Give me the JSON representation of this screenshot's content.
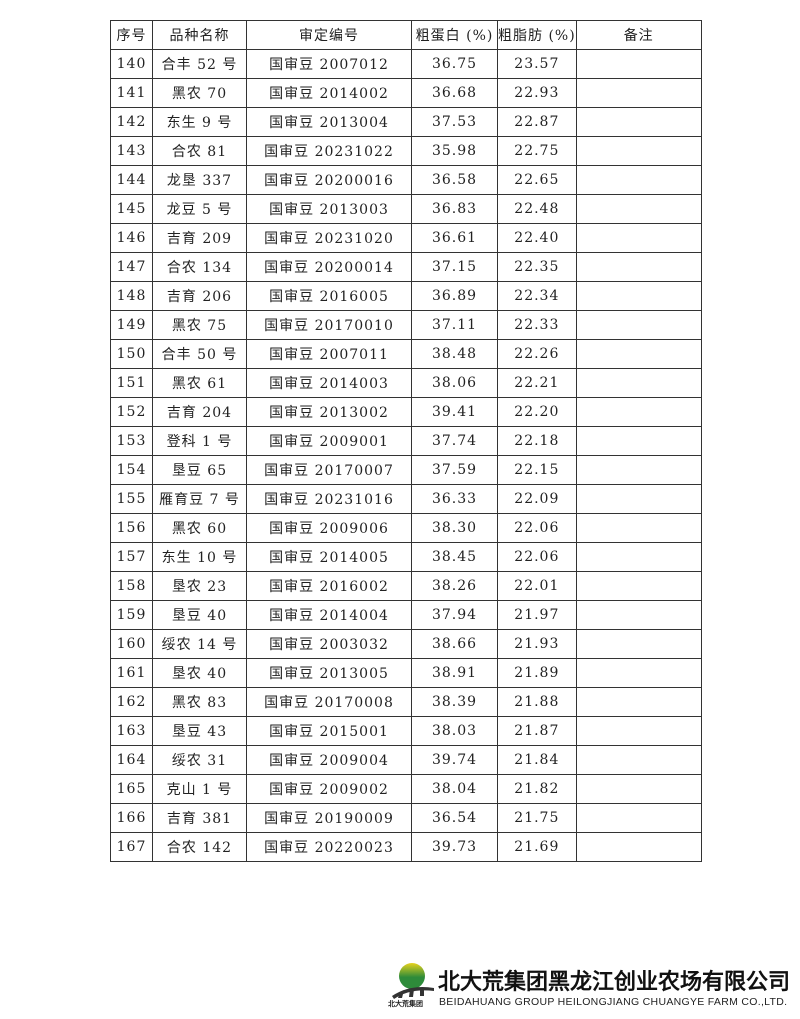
{
  "table": {
    "headers": [
      "序号",
      "品种名称",
      "审定编号",
      "粗蛋白 (%)",
      "粗脂肪 (%)",
      "备注"
    ],
    "rows": [
      [
        "140",
        "合丰 52 号",
        "国审豆 2007012",
        "36.75",
        "23.57",
        ""
      ],
      [
        "141",
        "黑农 70",
        "国审豆 2014002",
        "36.68",
        "22.93",
        ""
      ],
      [
        "142",
        "东生 9 号",
        "国审豆 2013004",
        "37.53",
        "22.87",
        ""
      ],
      [
        "143",
        "合农 81",
        "国审豆 20231022",
        "35.98",
        "22.75",
        ""
      ],
      [
        "144",
        "龙垦 337",
        "国审豆 20200016",
        "36.58",
        "22.65",
        ""
      ],
      [
        "145",
        "龙豆 5 号",
        "国审豆 2013003",
        "36.83",
        "22.48",
        ""
      ],
      [
        "146",
        "吉育 209",
        "国审豆 20231020",
        "36.61",
        "22.40",
        ""
      ],
      [
        "147",
        "合农 134",
        "国审豆 20200014",
        "37.15",
        "22.35",
        ""
      ],
      [
        "148",
        "吉育 206",
        "国审豆 2016005",
        "36.89",
        "22.34",
        ""
      ],
      [
        "149",
        "黑农 75",
        "国审豆 20170010",
        "37.11",
        "22.33",
        ""
      ],
      [
        "150",
        "合丰 50 号",
        "国审豆 2007011",
        "38.48",
        "22.26",
        ""
      ],
      [
        "151",
        "黑农 61",
        "国审豆 2014003",
        "38.06",
        "22.21",
        ""
      ],
      [
        "152",
        "吉育 204",
        "国审豆 2013002",
        "39.41",
        "22.20",
        ""
      ],
      [
        "153",
        "登科 1 号",
        "国审豆 2009001",
        "37.74",
        "22.18",
        ""
      ],
      [
        "154",
        "垦豆 65",
        "国审豆 20170007",
        "37.59",
        "22.15",
        ""
      ],
      [
        "155",
        "雁育豆 7 号",
        "国审豆 20231016",
        "36.33",
        "22.09",
        ""
      ],
      [
        "156",
        "黑农 60",
        "国审豆 2009006",
        "38.30",
        "22.06",
        ""
      ],
      [
        "157",
        "东生 10 号",
        "国审豆 2014005",
        "38.45",
        "22.06",
        ""
      ],
      [
        "158",
        "垦农 23",
        "国审豆 2016002",
        "38.26",
        "22.01",
        ""
      ],
      [
        "159",
        "垦豆 40",
        "国审豆 2014004",
        "37.94",
        "21.97",
        ""
      ],
      [
        "160",
        "绥农 14 号",
        "国审豆 2003032",
        "38.66",
        "21.93",
        ""
      ],
      [
        "161",
        "垦农 40",
        "国审豆 2013005",
        "38.91",
        "21.89",
        ""
      ],
      [
        "162",
        "黑农 83",
        "国审豆 20170008",
        "38.39",
        "21.88",
        ""
      ],
      [
        "163",
        "垦豆 43",
        "国审豆 2015001",
        "38.03",
        "21.87",
        ""
      ],
      [
        "164",
        "绥农 31",
        "国审豆 2009004",
        "39.74",
        "21.84",
        ""
      ],
      [
        "165",
        "克山 1 号",
        "国审豆 2009002",
        "38.04",
        "21.82",
        ""
      ],
      [
        "166",
        "吉育 381",
        "国审豆 20190009",
        "36.54",
        "21.75",
        ""
      ],
      [
        "167",
        "合农 142",
        "国审豆 20220023",
        "39.73",
        "21.69",
        ""
      ]
    ]
  },
  "footer": {
    "logo_text": "北大荒集团",
    "company_cn": "北大荒集团黑龙江创业农场有限公司",
    "company_en": "BEIDAHUANG GROUP HEILONGJIANG CHUANGYE FARM CO.,LTD.",
    "logo_colors": {
      "green": "#2e8b3a",
      "yellow": "#e6d21e",
      "dark": "#333333"
    }
  }
}
